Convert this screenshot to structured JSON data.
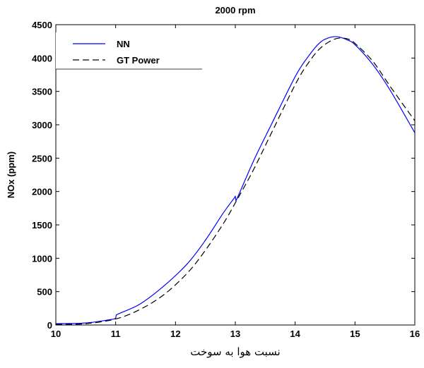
{
  "chart_data": {
    "type": "line",
    "title": "2000 rpm",
    "xlabel": "نسبت هوا به سوخت",
    "ylabel": "NOx (ppm)",
    "xlim": [
      10,
      16
    ],
    "ylim": [
      0,
      4500
    ],
    "xticks": [
      "10",
      "11",
      "12",
      "13",
      "14",
      "15",
      "16"
    ],
    "yticks": [
      "0",
      "500",
      "1000",
      "1500",
      "2000",
      "2500",
      "3000",
      "3500",
      "4000",
      "4500"
    ],
    "grid": false,
    "legend_position": "top-left",
    "series": [
      {
        "name": "NN",
        "color": "#0000ff",
        "style": "solid",
        "x": [
          10.0,
          10.5,
          10.9,
          11.0,
          11.01,
          11.4,
          11.8,
          12.2,
          12.5,
          12.8,
          12.98,
          13.0,
          13.01,
          13.3,
          13.6,
          14.0,
          14.2,
          14.4,
          14.55,
          14.7,
          14.85,
          15.0,
          15.3,
          15.6,
          16.0
        ],
        "y": [
          20,
          30,
          80,
          100,
          150,
          310,
          580,
          920,
          1270,
          1680,
          1900,
          1930,
          1860,
          2450,
          3000,
          3720,
          4000,
          4220,
          4300,
          4320,
          4280,
          4200,
          3900,
          3500,
          2880
        ]
      },
      {
        "name": "GT Power",
        "color": "#000000",
        "style": "dashed",
        "x": [
          10.0,
          10.5,
          11.0,
          11.4,
          11.8,
          12.2,
          12.5,
          12.8,
          13.0,
          13.3,
          13.6,
          14.0,
          14.2,
          14.4,
          14.6,
          14.75,
          14.9,
          15.0,
          15.3,
          15.6,
          16.0
        ],
        "y": [
          10,
          20,
          90,
          230,
          450,
          780,
          1120,
          1520,
          1830,
          2320,
          2870,
          3600,
          3900,
          4130,
          4260,
          4300,
          4280,
          4220,
          3950,
          3560,
          3060
        ]
      }
    ]
  }
}
